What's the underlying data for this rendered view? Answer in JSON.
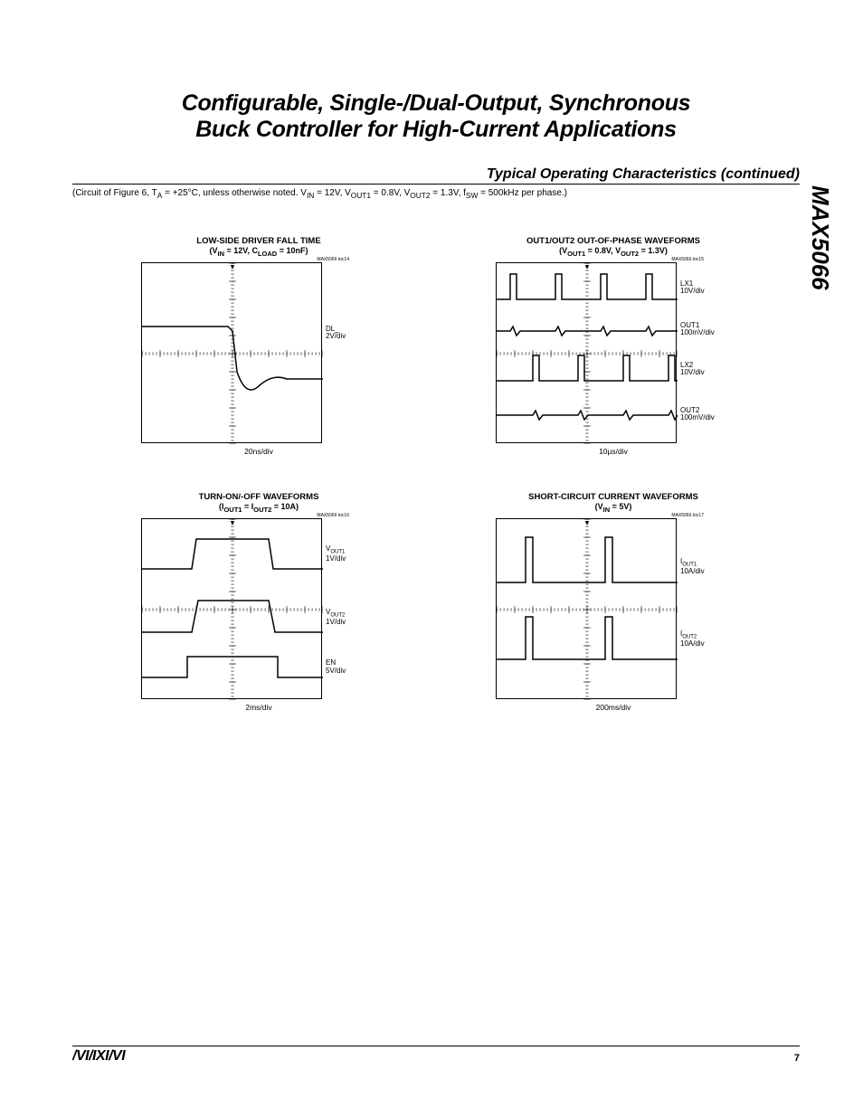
{
  "header": {
    "main_title_line1": "Configurable, Single-/Dual-Output, Synchronous",
    "main_title_line2": "Buck Controller for High-Current Applications",
    "section_title": "Typical Operating Characteristics (continued)",
    "circuit_note_prefix": "(Circuit of Figure 6, T",
    "circuit_note_a": "A",
    "circuit_note_mid1": " = +25°C, unless otherwise noted. V",
    "circuit_note_in": "IN",
    "circuit_note_mid2": " = 12V, V",
    "circuit_note_out1": "OUT1",
    "circuit_note_mid3": " = 0.8V, V",
    "circuit_note_out2": "OUT2",
    "circuit_note_mid4": " = 1.3V, f",
    "circuit_note_sw": "SW",
    "circuit_note_end": " = 500kHz per phase.)",
    "part_number": "MAX5066"
  },
  "charts": [
    {
      "title": "LOW-SIDE DRIVER FALL TIME",
      "subtitle_html": "(V<sub>IN</sub> = 12V, C<sub>LOAD</sub> = 10nF)",
      "toc": "MAX5066 toc14",
      "x_label": "20ns/div",
      "traces": [
        {
          "name": "DL_",
          "scale": "2V/div",
          "top_pct": 35
        }
      ],
      "svg_paths": [
        "M 0 70 L 95 70 L 100 75 L 105 120 Q 115 150 130 135 Q 145 122 160 128 L 200 128"
      ],
      "grid": true
    },
    {
      "title": "OUT1/OUT2 OUT-OF-PHASE WAVEFORMS",
      "subtitle_html": "(V<sub>OUT1</sub> = 0.8V, V<sub>OUT2</sub> = 1.3V)",
      "toc": "MAX5066 toc15",
      "x_label": "10µs/div",
      "traces": [
        {
          "name": "LX1",
          "scale": "10V/div",
          "top_pct": 10
        },
        {
          "name": "OUT1",
          "scale": "100mV/div",
          "top_pct": 33
        },
        {
          "name": "LX2",
          "scale": "10V/div",
          "top_pct": 55
        },
        {
          "name": "OUT2",
          "scale": "100mV/div",
          "top_pct": 80
        }
      ],
      "svg_paths": [
        "M 0 40 L 15 40 L 15 12 L 22 12 L 22 40 L 65 40 L 65 12 L 72 12 L 72 40 L 115 40 L 115 12 L 122 12 L 122 40 L 165 40 L 165 12 L 172 12 L 172 40 L 200 40",
        "M 0 75 L 15 75 L 18 70 L 22 80 L 26 75 L 65 75 L 68 70 L 72 80 L 76 75 L 115 75 L 118 70 L 122 80 L 126 75 L 165 75 L 168 70 L 172 80 L 176 75 L 200 75",
        "M 0 130 L 40 130 L 40 102 L 47 102 L 47 130 L 90 130 L 90 102 L 97 102 L 97 130 L 140 130 L 140 102 L 147 102 L 147 130 L 190 130 L 190 102 L 197 102 L 197 130 L 200 130",
        "M 0 168 L 40 168 L 43 163 L 47 173 L 51 168 L 90 168 L 93 163 L 97 173 L 101 168 L 140 168 L 143 163 L 147 173 L 151 168 L 190 168 L 193 163 L 197 173 L 200 168"
      ],
      "grid": true
    },
    {
      "title": "TURN-ON/-OFF WAVEFORMS",
      "subtitle_html": "(I<sub>OUT1</sub> = I<sub>OUT2</sub> = 10A)",
      "toc": "MAX5066 toc16",
      "x_label": "2ms/div",
      "traces": [
        {
          "name": "VOUT1",
          "scale": "1V/div",
          "top_pct": 15,
          "sub": "OUT1",
          "prefix": "V"
        },
        {
          "name": "VOUT2",
          "scale": "1V/div",
          "top_pct": 50,
          "sub": "OUT2",
          "prefix": "V"
        },
        {
          "name": "EN",
          "scale": "5V/div",
          "top_pct": 78
        }
      ],
      "svg_paths": [
        "M 0 55 L 55 55 L 60 22 L 140 22 L 145 55 L 200 55",
        "M 0 125 L 55 125 L 62 90 L 140 90 L 147 125 L 200 125",
        "M 0 175 L 50 175 L 50 152 L 150 152 L 150 175 L 200 175"
      ],
      "grid": true
    },
    {
      "title": "SHORT-CIRCUIT CURRENT WAVEFORMS",
      "subtitle_html": "(V<sub>IN</sub> = 5V)",
      "toc": "MAX5066 toc17",
      "x_label": "200ms/div",
      "traces": [
        {
          "name": "IOUT1",
          "scale": "10A/div",
          "top_pct": 22,
          "sub": "OUT1",
          "prefix": "I"
        },
        {
          "name": "IOUT2",
          "scale": "10A/div",
          "top_pct": 62,
          "sub": "OUT2",
          "prefix": "I"
        }
      ],
      "svg_paths": [
        "M 0 70 L 32 70 L 32 20 L 40 20 L 40 70 L 120 70 L 120 20 L 128 20 L 128 70 L 200 70",
        "M 0 155 L 32 155 L 32 108 L 40 108 L 40 155 L 120 155 L 120 108 L 128 108 L 128 155 L 200 155"
      ],
      "grid": true
    }
  ],
  "footer": {
    "logo": "MAXIM",
    "page": "7"
  },
  "styling": {
    "stroke_color": "#000000",
    "stroke_width": 1.5,
    "grid_color": "#000000",
    "background": "#ffffff"
  }
}
